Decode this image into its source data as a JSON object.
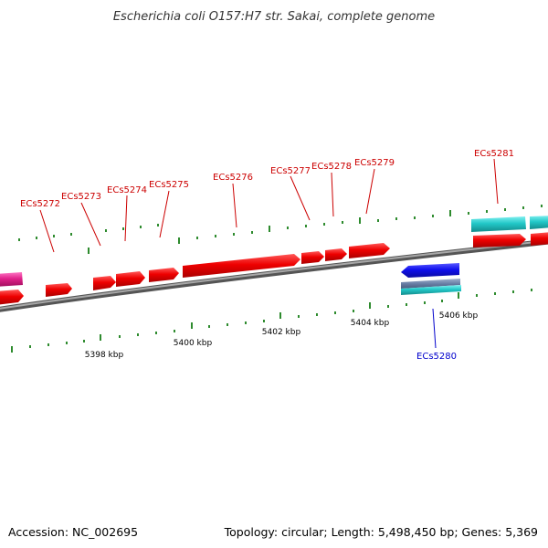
{
  "title": "Escherichia coli O157:H7 str. Sakai, complete genome",
  "accession": "Accession: NC_002695",
  "summary": "Topology: circular; Length: 5,498,450 bp; Genes: 5,369",
  "colors": {
    "forward_gene": "#ee0000",
    "reverse_gene": "#1a1aee",
    "forward_label": "#cc0000",
    "reverse_label": "#0000cc",
    "cyan_gene": "#22c8c8",
    "magenta_gene": "#e0208a",
    "backbone": "#7a7a7a",
    "tick": "#2e8b2e"
  },
  "scale_labels": [
    "5398 kbp",
    "5400 kbp",
    "5402 kbp",
    "5404 kbp",
    "5406 kbp"
  ],
  "forward_gene_labels": [
    "ECs5272",
    "ECs5273",
    "ECs5274",
    "ECs5275",
    "ECs5276",
    "ECs5277",
    "ECs5278",
    "ECs5279",
    "ECs5281"
  ],
  "reverse_gene_labels": [
    "ECs5280"
  ]
}
